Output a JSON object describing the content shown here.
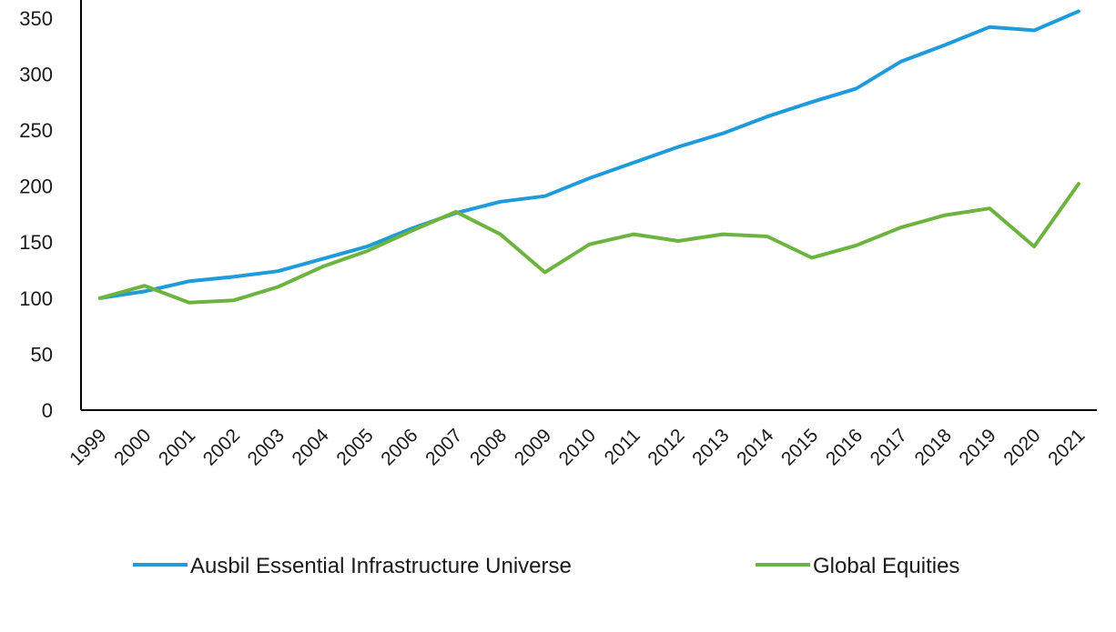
{
  "chart_data": {
    "type": "line",
    "categories": [
      "1999",
      "2000",
      "2001",
      "2002",
      "2003",
      "2004",
      "2005",
      "2006",
      "2007",
      "2008",
      "2009",
      "2010",
      "2011",
      "2012",
      "2013",
      "2014",
      "2015",
      "2016",
      "2017",
      "2018",
      "2019",
      "2020",
      "2021"
    ],
    "series": [
      {
        "name": "Ausbil Essential Infrastructure Universe",
        "color": "#1F9ADB",
        "values": [
          100,
          106,
          115,
          119,
          124,
          135,
          146,
          162,
          176,
          186,
          191,
          207,
          221,
          235,
          247,
          262,
          275,
          287,
          311,
          326,
          342,
          339,
          356
        ]
      },
      {
        "name": "Global Equities",
        "color": "#6CB33F",
        "values": [
          100,
          111,
          96,
          98,
          110,
          128,
          142,
          160,
          177,
          157,
          123,
          148,
          157,
          151,
          157,
          155,
          136,
          147,
          163,
          174,
          180,
          146,
          202
        ]
      }
    ],
    "ylim": [
      0,
      350
    ],
    "yticks": [
      0,
      50,
      100,
      150,
      200,
      250,
      300,
      350
    ],
    "grid": false,
    "legend_position": "bottom",
    "title": "",
    "xlabel": "",
    "ylabel": ""
  }
}
